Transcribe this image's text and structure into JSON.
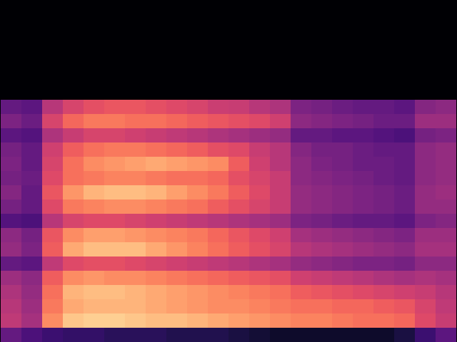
{
  "chart_data": {
    "type": "heatmap",
    "color": "magma",
    "tick_labels": false,
    "zlim": [
      0,
      100
    ],
    "cells": [
      [
        0,
        0,
        0,
        0,
        0,
        0,
        0,
        0,
        0,
        0,
        0,
        0,
        0,
        0,
        0,
        0,
        0,
        0,
        0,
        0,
        0,
        0
      ],
      [
        0,
        0,
        0,
        0,
        0,
        0,
        0,
        0,
        0,
        0,
        0,
        0,
        0,
        0,
        0,
        0,
        0,
        0,
        0,
        0,
        0,
        0
      ],
      [
        0,
        0,
        0,
        0,
        0,
        0,
        0,
        0,
        0,
        0,
        0,
        0,
        0,
        0,
        0,
        0,
        0,
        0,
        0,
        0,
        0,
        0
      ],
      [
        0,
        0,
        0,
        0,
        0,
        0,
        0,
        0,
        0,
        0,
        0,
        0,
        0,
        0,
        0,
        0,
        0,
        0,
        0,
        0,
        0,
        0
      ],
      [
        0,
        0,
        0,
        0,
        0,
        0,
        0,
        0,
        0,
        0,
        0,
        0,
        0,
        0,
        0,
        0,
        0,
        0,
        0,
        0,
        0,
        0
      ],
      [
        0,
        0,
        0,
        0,
        0,
        0,
        0,
        0,
        0,
        0,
        0,
        0,
        0,
        0,
        0,
        0,
        0,
        0,
        0,
        0,
        0,
        0
      ],
      [
        0,
        0,
        0,
        0,
        0,
        0,
        0,
        0,
        0,
        0,
        0,
        0,
        0,
        0,
        0,
        0,
        0,
        0,
        0,
        0,
        0,
        0
      ],
      [
        30,
        28,
        50,
        58,
        62,
        64,
        64,
        62,
        60,
        58,
        55,
        54,
        50,
        48,
        36,
        34,
        32,
        30,
        30,
        28,
        38,
        40
      ],
      [
        36,
        32,
        58,
        68,
        72,
        72,
        70,
        70,
        68,
        66,
        64,
        62,
        60,
        56,
        40,
        38,
        36,
        34,
        32,
        32,
        44,
        44
      ],
      [
        28,
        26,
        48,
        54,
        58,
        58,
        56,
        54,
        52,
        50,
        48,
        46,
        44,
        42,
        30,
        30,
        28,
        28,
        26,
        24,
        34,
        36
      ],
      [
        34,
        30,
        56,
        66,
        70,
        72,
        72,
        70,
        68,
        66,
        62,
        60,
        54,
        50,
        38,
        34,
        34,
        32,
        30,
        30,
        40,
        42
      ],
      [
        36,
        30,
        58,
        70,
        76,
        78,
        80,
        82,
        80,
        78,
        76,
        66,
        56,
        50,
        40,
        36,
        34,
        32,
        32,
        30,
        40,
        42
      ],
      [
        34,
        32,
        60,
        70,
        72,
        74,
        74,
        72,
        70,
        70,
        68,
        62,
        58,
        54,
        40,
        38,
        36,
        34,
        32,
        30,
        40,
        42
      ],
      [
        38,
        30,
        64,
        78,
        84,
        86,
        86,
        84,
        80,
        76,
        72,
        66,
        60,
        54,
        42,
        40,
        38,
        36,
        34,
        32,
        42,
        44
      ],
      [
        34,
        30,
        60,
        72,
        74,
        76,
        76,
        74,
        72,
        70,
        66,
        62,
        58,
        54,
        42,
        40,
        38,
        36,
        34,
        32,
        42,
        42
      ],
      [
        26,
        24,
        50,
        58,
        60,
        60,
        58,
        56,
        54,
        52,
        50,
        48,
        46,
        44,
        36,
        34,
        32,
        30,
        30,
        28,
        36,
        38
      ],
      [
        40,
        34,
        64,
        76,
        80,
        80,
        78,
        76,
        74,
        72,
        68,
        64,
        60,
        56,
        46,
        44,
        42,
        40,
        38,
        36,
        44,
        44
      ],
      [
        42,
        36,
        66,
        82,
        86,
        86,
        86,
        82,
        78,
        74,
        70,
        66,
        62,
        58,
        50,
        48,
        46,
        44,
        42,
        40,
        46,
        46
      ],
      [
        30,
        28,
        52,
        60,
        62,
        62,
        60,
        58,
        56,
        54,
        52,
        50,
        48,
        46,
        42,
        40,
        38,
        36,
        36,
        34,
        40,
        40
      ],
      [
        44,
        40,
        66,
        76,
        78,
        76,
        76,
        74,
        72,
        70,
        68,
        66,
        64,
        62,
        56,
        54,
        52,
        50,
        48,
        46,
        48,
        46
      ],
      [
        48,
        42,
        70,
        84,
        86,
        86,
        84,
        82,
        80,
        78,
        76,
        74,
        72,
        70,
        66,
        64,
        62,
        60,
        58,
        56,
        54,
        50
      ],
      [
        50,
        44,
        72,
        82,
        84,
        84,
        84,
        82,
        80,
        78,
        76,
        76,
        74,
        72,
        70,
        70,
        68,
        68,
        66,
        64,
        58,
        52
      ],
      [
        52,
        46,
        76,
        88,
        90,
        90,
        88,
        86,
        86,
        84,
        82,
        80,
        78,
        76,
        74,
        74,
        72,
        70,
        70,
        68,
        60,
        54
      ],
      [
        30,
        24,
        20,
        18,
        18,
        16,
        16,
        16,
        14,
        14,
        14,
        12,
        10,
        8,
        8,
        8,
        8,
        8,
        8,
        12,
        20,
        28
      ]
    ]
  }
}
